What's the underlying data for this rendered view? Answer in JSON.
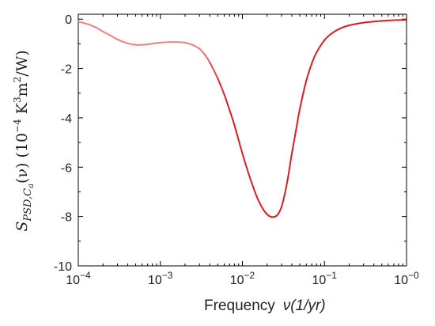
{
  "chart_data": {
    "type": "line",
    "xlabel_prefix": "Frequency",
    "xlabel_var": "ν(1/yr)",
    "ylabel_symbol": "S",
    "ylabel_sub": "PSD,C",
    "ylabel_subsub": "a",
    "ylabel_rest": "(ν) (10",
    "ylabel_exp": "−4",
    "ylabel_units1": " K",
    "ylabel_units_exp1": "3",
    "ylabel_units2": "m",
    "ylabel_units_exp2": "2",
    "ylabel_units3": "/W)",
    "x_scale": "log",
    "xlim": [
      0.0001,
      1
    ],
    "ylim": [
      -10,
      0.2
    ],
    "x_ticks": [
      {
        "base": "10",
        "exp": "−4",
        "value": 0.0001
      },
      {
        "base": "10",
        "exp": "−3",
        "value": 0.001
      },
      {
        "base": "10",
        "exp": "−2",
        "value": 0.01
      },
      {
        "base": "10",
        "exp": "−1",
        "value": 0.1
      },
      {
        "base": "10",
        "exp": "−0",
        "value": 1
      }
    ],
    "y_ticks": [
      {
        "label": "0",
        "value": 0
      },
      {
        "label": "-2",
        "value": -2
      },
      {
        "label": "-4",
        "value": -4
      },
      {
        "label": "-6",
        "value": -6
      },
      {
        "label": "-8",
        "value": -8
      },
      {
        "label": "-10",
        "value": -10
      }
    ],
    "series": [
      {
        "color_light": "#f08080",
        "color_dark": "#d42020",
        "x": [
          0.0001,
          0.00013,
          0.00016,
          0.0002,
          0.00025,
          0.0003,
          0.0004,
          0.0005,
          0.0006,
          0.0007,
          0.0008,
          0.001,
          0.0013,
          0.0016,
          0.002,
          0.0025,
          0.003,
          0.0035,
          0.004,
          0.005,
          0.006,
          0.007,
          0.008,
          0.01,
          0.012,
          0.015,
          0.018,
          0.021,
          0.024,
          0.027,
          0.03,
          0.033,
          0.036,
          0.04,
          0.045,
          0.05,
          0.06,
          0.07,
          0.08,
          0.1,
          0.12,
          0.15,
          0.2,
          0.3,
          0.5,
          0.7,
          1.0
        ],
        "y": [
          -0.1,
          -0.2,
          -0.32,
          -0.5,
          -0.67,
          -0.82,
          -0.98,
          -1.04,
          -1.04,
          -1.02,
          -0.99,
          -0.95,
          -0.93,
          -0.93,
          -0.95,
          -1.05,
          -1.2,
          -1.45,
          -1.75,
          -2.4,
          -3.05,
          -3.7,
          -4.3,
          -5.45,
          -6.3,
          -7.2,
          -7.72,
          -7.97,
          -8.02,
          -7.92,
          -7.6,
          -7.05,
          -6.4,
          -5.45,
          -4.5,
          -3.65,
          -2.5,
          -1.8,
          -1.35,
          -0.85,
          -0.6,
          -0.4,
          -0.25,
          -0.14,
          -0.07,
          -0.04,
          -0.03
        ]
      }
    ]
  }
}
